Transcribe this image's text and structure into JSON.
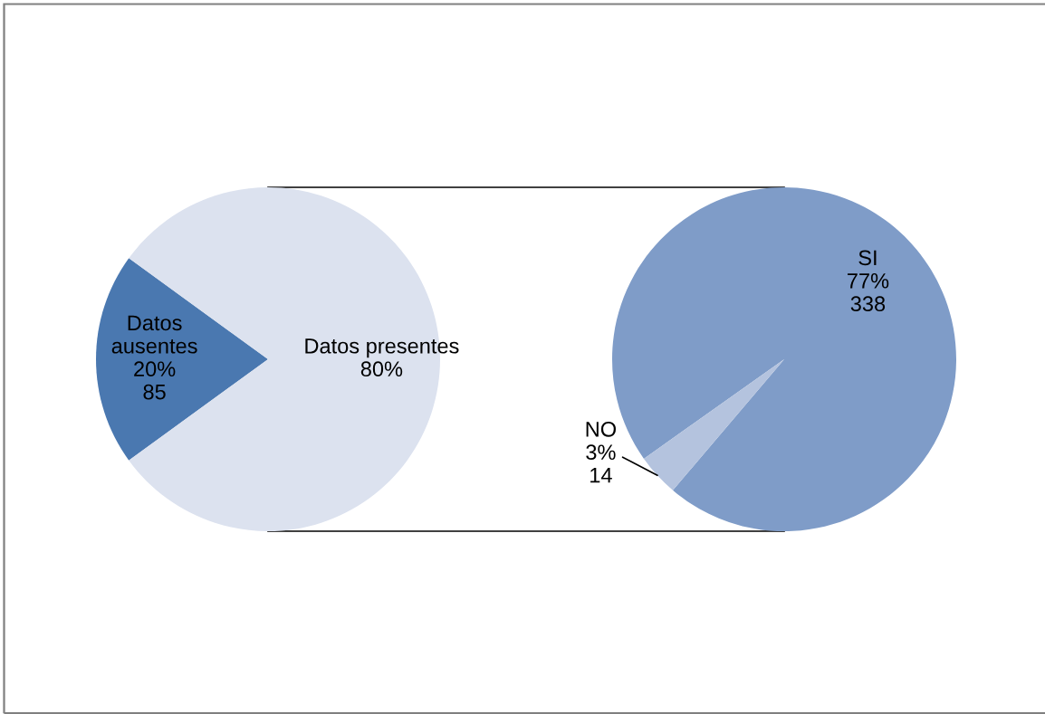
{
  "chart_data": [
    {
      "type": "pie",
      "categories": [
        "Datos\nausentes",
        "Datos presentes"
      ],
      "values": [
        20,
        80
      ],
      "colors": [
        "#4a78b0",
        "#dce2ef"
      ],
      "value_labels": [
        "20%\n85",
        "80%"
      ]
    },
    {
      "type": "pie",
      "categories": [
        "SI",
        "NO"
      ],
      "values": [
        338,
        14
      ],
      "colors": [
        "#7f9cc8",
        "#b4c3de"
      ],
      "value_labels": [
        "77%\n338",
        "3%\n14"
      ]
    }
  ]
}
